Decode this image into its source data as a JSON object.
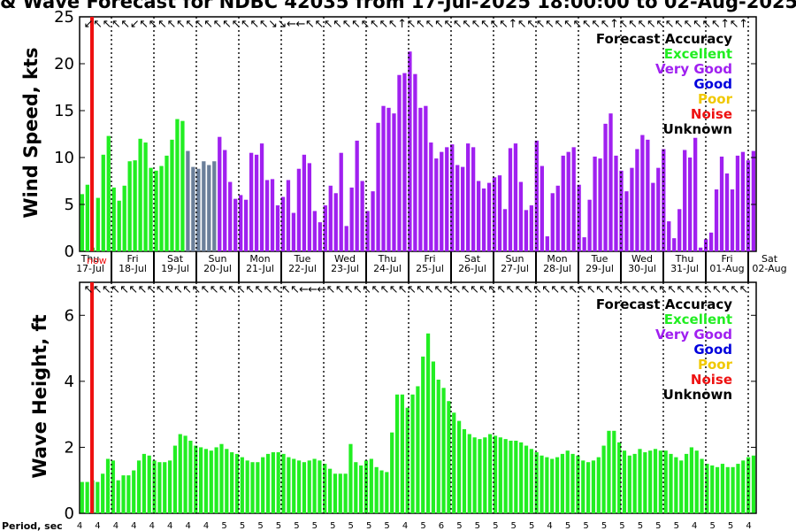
{
  "title": "& Wave Forecast for NDBC 42035 from 17-Jul-2025 18:00:00 to 02-Aug-2025",
  "colors": {
    "excellent": "#22ee22",
    "very_good": "#a020f0",
    "good": "#0000dd",
    "poor": "#f0c800",
    "noise": "#ee1111",
    "unknown": "#000000",
    "slate": "#6b7f9a",
    "now_line": "#ee1111"
  },
  "legend": {
    "title": "Forecast Accuracy",
    "items": [
      {
        "label": "Excellent",
        "color": "#22ee22"
      },
      {
        "label": "Very Good",
        "color": "#a020f0"
      },
      {
        "label": "Good",
        "color": "#0000dd"
      },
      {
        "label": "Poor",
        "color": "#f0c800"
      },
      {
        "label": "Noise",
        "color": "#ee1111"
      },
      {
        "label": "Unknown",
        "color": "#000000"
      }
    ]
  },
  "day_ticks": [
    {
      "dow": "Thu",
      "date": "17-Jul"
    },
    {
      "dow": "Fri",
      "date": "18-Jul"
    },
    {
      "dow": "Sat",
      "date": "19-Jul"
    },
    {
      "dow": "Sun",
      "date": "20-Jul"
    },
    {
      "dow": "Mon",
      "date": "21-Jul"
    },
    {
      "dow": "Tue",
      "date": "22-Jul"
    },
    {
      "dow": "Wed",
      "date": "23-Jul"
    },
    {
      "dow": "Thu",
      "date": "24-Jul"
    },
    {
      "dow": "Fri",
      "date": "25-Jul"
    },
    {
      "dow": "Sat",
      "date": "26-Jul"
    },
    {
      "dow": "Sun",
      "date": "27-Jul"
    },
    {
      "dow": "Mon",
      "date": "28-Jul"
    },
    {
      "dow": "Tue",
      "date": "29-Jul"
    },
    {
      "dow": "Wed",
      "date": "30-Jul"
    },
    {
      "dow": "Thu",
      "date": "31-Jul"
    },
    {
      "dow": "Fri",
      "date": "01-Aug"
    },
    {
      "dow": "Sat",
      "date": "02-Aug"
    }
  ],
  "now_label": "now",
  "period_label": "Period, sec",
  "period_values": [
    4,
    4,
    4,
    4,
    4,
    4,
    4,
    4,
    5,
    5,
    5,
    5,
    5,
    5,
    5,
    5,
    5,
    5,
    4,
    5,
    6,
    5,
    5,
    5,
    5,
    5,
    4,
    5,
    5,
    5,
    5,
    5,
    5,
    5,
    4,
    5,
    5,
    4
  ],
  "chart_data": [
    {
      "type": "bar",
      "ylabel": "Wind Speed, kts",
      "ylim": [
        0,
        25
      ],
      "yticks": [
        0,
        5,
        10,
        15,
        20,
        25
      ],
      "x_start": "17-Jul-2025 18:00",
      "x_step_hours": 3,
      "values": [
        6.1,
        7.1,
        0.4,
        5.7,
        10.3,
        12.3,
        6.8,
        5.4,
        7.0,
        9.6,
        9.7,
        12.0,
        11.6,
        8.9,
        8.6,
        9.1,
        10.2,
        11.9,
        14.1,
        13.9,
        10.7,
        9.0,
        8.8,
        9.6,
        9.2,
        9.6,
        12.2,
        10.8,
        7.4,
        5.6,
        6.0,
        5.5,
        10.5,
        10.3,
        11.5,
        7.6,
        7.7,
        4.9,
        5.8,
        7.6,
        4.1,
        8.8,
        10.3,
        9.4,
        4.3,
        3.1,
        4.9,
        7.0,
        6.2,
        10.5,
        2.7,
        6.8,
        11.8,
        7.5,
        4.3,
        6.4,
        13.7,
        15.5,
        15.3,
        14.7,
        18.8,
        19.0,
        21.3,
        18.9,
        15.3,
        15.5,
        11.6,
        9.9,
        10.6,
        11.1,
        11.4,
        9.2,
        9.0,
        11.5,
        11.1,
        7.5,
        6.7,
        7.3,
        7.9,
        8.1,
        4.5,
        11.0,
        11.5,
        7.4,
        4.4,
        4.9,
        11.8,
        9.1,
        1.6,
        6.2,
        7.0,
        10.2,
        10.6,
        11.1,
        7.1,
        1.5,
        5.5,
        10.1,
        9.9,
        13.6,
        14.7,
        10.2,
        8.6,
        6.4,
        8.9,
        10.9,
        12.4,
        11.9,
        7.3,
        8.9,
        10.9,
        3.2,
        1.4,
        4.5,
        10.8,
        10.0,
        12.1,
        0.4,
        1.3,
        2.0,
        6.6,
        10.1,
        8.3,
        6.6,
        10.2,
        10.6,
        9.7,
        10.7
      ],
      "colors": [
        "excellent",
        "excellent",
        "excellent",
        "excellent",
        "excellent",
        "excellent",
        "excellent",
        "excellent",
        "excellent",
        "excellent",
        "excellent",
        "excellent",
        "excellent",
        "excellent",
        "excellent",
        "excellent",
        "excellent",
        "excellent",
        "excellent",
        "excellent",
        "slate",
        "slate",
        "slate",
        "slate",
        "slate",
        "slate",
        "very_good",
        "very_good",
        "very_good",
        "very_good",
        "very_good",
        "very_good",
        "very_good",
        "very_good",
        "very_good",
        "very_good",
        "very_good",
        "very_good",
        "very_good",
        "very_good",
        "very_good",
        "very_good",
        "very_good",
        "very_good",
        "very_good",
        "very_good",
        "very_good",
        "very_good",
        "very_good",
        "very_good",
        "very_good",
        "very_good",
        "very_good",
        "very_good",
        "very_good",
        "very_good",
        "very_good",
        "very_good",
        "very_good",
        "very_good",
        "very_good",
        "very_good",
        "very_good",
        "very_good",
        "very_good",
        "very_good",
        "very_good",
        "very_good",
        "very_good",
        "very_good",
        "very_good",
        "very_good",
        "very_good",
        "very_good",
        "very_good",
        "very_good",
        "very_good",
        "very_good",
        "very_good",
        "very_good",
        "very_good",
        "very_good",
        "very_good",
        "very_good",
        "very_good",
        "very_good",
        "very_good",
        "very_good",
        "very_good",
        "very_good",
        "very_good",
        "very_good",
        "very_good",
        "very_good",
        "very_good",
        "very_good",
        "very_good",
        "very_good",
        "very_good",
        "very_good",
        "very_good",
        "very_good",
        "very_good",
        "very_good",
        "very_good",
        "very_good",
        "very_good",
        "very_good",
        "very_good",
        "very_good",
        "very_good",
        "very_good",
        "very_good",
        "very_good",
        "very_good",
        "very_good",
        "very_good",
        "very_good",
        "very_good",
        "very_good",
        "very_good",
        "very_good",
        "very_good",
        "very_good",
        "very_good",
        "very_good",
        "very_good",
        "very_good"
      ],
      "directions_deg": [
        180,
        150,
        150,
        145,
        150,
        160,
        150,
        150,
        160,
        150,
        160,
        160,
        150,
        145,
        150,
        160,
        150,
        145,
        120,
        130,
        140,
        150,
        150,
        150,
        150,
        150,
        150,
        150,
        150,
        150,
        150,
        150,
        150,
        160,
        150,
        160,
        150,
        150,
        150,
        150,
        150,
        150,
        120,
        160,
        180,
        150,
        140,
        150,
        160,
        150,
        150,
        150,
        150,
        150,
        150,
        150,
        150,
        150,
        150,
        150,
        150,
        150,
        150,
        150,
        150,
        150,
        150,
        150,
        150,
        150,
        150,
        150,
        150,
        150,
        150
      ],
      "direction_symbols": [
        "↙",
        "↖",
        "↖",
        "↖",
        "↖",
        "↙",
        "↖",
        "↖",
        "↖",
        "↖",
        "↖",
        "↖",
        "↖",
        "↖",
        "↖",
        "↖",
        "↖",
        "↖",
        "↖",
        "↖",
        "↘",
        "↘",
        "←",
        "←",
        "↖",
        "↖",
        "↖",
        "↖",
        "↖",
        "↖",
        "↖",
        "↖",
        "↖",
        "↖",
        "↑",
        "↖",
        "↖",
        "↖",
        "↖",
        "↖",
        "↖",
        "↖",
        "↖",
        "↖",
        "↖",
        "↖",
        "↑",
        "↖",
        "↖",
        "↖",
        "↖",
        "↖",
        "↖",
        "↖",
        "↖",
        "↖",
        "↖",
        "↑",
        "↖",
        "↖",
        "↖",
        "↖",
        "↖",
        "↖",
        "↖",
        "↖",
        "↖",
        "↖",
        "↖",
        "↑",
        "↖",
        "↑"
      ]
    },
    {
      "type": "bar",
      "ylabel": "Wave Height, ft",
      "ylim": [
        0,
        7
      ],
      "yticks": [
        0,
        2,
        4,
        6
      ],
      "x_start": "17-Jul-2025 18:00",
      "x_step_hours": 3,
      "values": [
        0.95,
        0.95,
        1.0,
        0.95,
        1.2,
        1.65,
        1.6,
        1.0,
        1.15,
        1.15,
        1.3,
        1.6,
        1.8,
        1.75,
        1.6,
        1.55,
        1.55,
        1.6,
        2.05,
        2.4,
        2.35,
        2.2,
        2.05,
        2.0,
        1.95,
        1.9,
        2.0,
        2.1,
        1.95,
        1.85,
        1.8,
        1.7,
        1.6,
        1.55,
        1.55,
        1.7,
        1.8,
        1.85,
        1.85,
        1.8,
        1.7,
        1.65,
        1.6,
        1.55,
        1.6,
        1.65,
        1.6,
        1.5,
        1.35,
        1.2,
        1.2,
        1.2,
        2.1,
        1.55,
        1.45,
        1.6,
        1.65,
        1.4,
        1.3,
        1.25,
        2.45,
        3.6,
        3.6,
        3.2,
        3.6,
        3.85,
        4.75,
        5.45,
        4.6,
        4.05,
        3.8,
        3.4,
        3.05,
        2.8,
        2.55,
        2.4,
        2.3,
        2.25,
        2.3,
        2.4,
        2.35,
        2.3,
        2.25,
        2.2,
        2.2,
        2.15,
        2.05,
        1.95,
        1.85,
        1.75,
        1.7,
        1.65,
        1.7,
        1.8,
        1.9,
        1.8,
        1.75,
        1.6,
        1.55,
        1.6,
        1.7,
        2.05,
        2.5,
        2.5,
        2.15,
        1.9,
        1.75,
        1.8,
        1.95,
        1.85,
        1.9,
        1.95,
        1.9,
        1.9,
        1.8,
        1.7,
        1.6,
        1.8,
        2.0,
        1.9,
        1.65,
        1.5,
        1.45,
        1.4,
        1.5,
        1.4,
        1.4,
        1.5,
        1.6,
        1.7,
        1.75
      ],
      "color": "excellent",
      "direction_symbols": [
        "↖",
        "↖",
        "↖",
        "↖",
        "↖",
        "↖",
        "↖",
        "↖",
        "↖",
        "↖",
        "↖",
        "↖",
        "↖",
        "↖",
        "↖",
        "↖",
        "↖",
        "↖",
        "↖",
        "↖",
        "↖",
        "↖",
        "↖",
        "↖",
        "←",
        "←",
        "←",
        "↖",
        "↖",
        "↖",
        "↖",
        "↖",
        "↖",
        "↖",
        "↖",
        "↖",
        "↖",
        "↖",
        "↖",
        "↖",
        "↖",
        "↖",
        "↖",
        "↖",
        "↖",
        "↖",
        "↖",
        "↖",
        "↖",
        "↖",
        "↖",
        "↖",
        "↖",
        "↖",
        "↖",
        "↖",
        "↖",
        "↖",
        "↖",
        "↖",
        "↖",
        "↖",
        "↖",
        "↖",
        "↖",
        "↖",
        "↖",
        "↖",
        "↖",
        "↖",
        "↖",
        "↖",
        "↖",
        "↖"
      ]
    }
  ]
}
